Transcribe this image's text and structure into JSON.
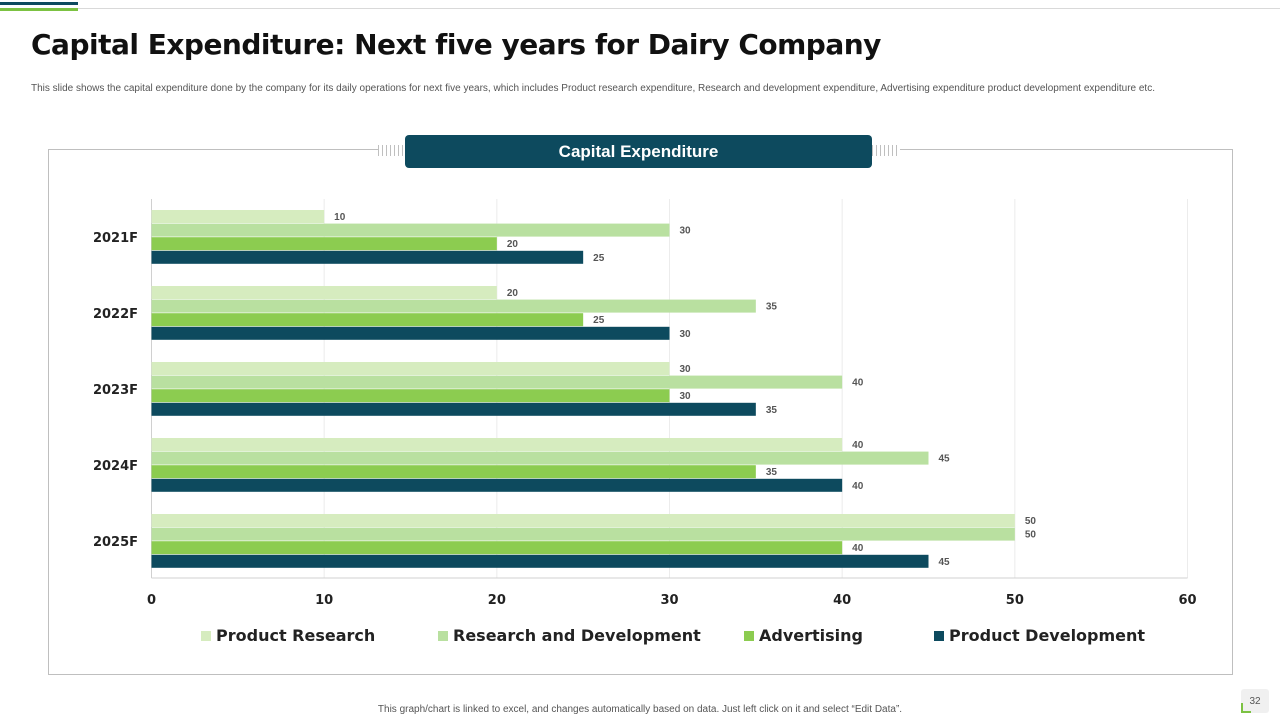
{
  "slide": {
    "title": "Capital Expenditure: Next five years for Dairy Company",
    "subtitle": "This slide shows the capital expenditure done by the company for its daily operations for next five years, which includes Product research expenditure, Research and development expenditure, Advertising expenditure product development expenditure etc.",
    "footer_note": "This graph/chart is linked to excel, and changes automatically based on data. Just left click on it and select “Edit Data”.",
    "page_number": "32"
  },
  "colors": {
    "brand_dark": "#0d4a5e",
    "brand_green": "#7cc242"
  },
  "chart_data": {
    "type": "bar",
    "orientation": "horizontal",
    "title": "Capital Expenditure",
    "categories": [
      "2021F",
      "2022F",
      "2023F",
      "2024F",
      "2025F"
    ],
    "series": [
      {
        "name": "Product Research",
        "color": "#d6ecbf",
        "values": [
          10,
          20,
          30,
          40,
          50
        ]
      },
      {
        "name": "Research and Development",
        "color": "#b9e0a0",
        "values": [
          30,
          35,
          40,
          45,
          50
        ]
      },
      {
        "name": "Advertising",
        "color": "#8ccc50",
        "values": [
          20,
          25,
          30,
          35,
          40
        ]
      },
      {
        "name": "Product Development",
        "color": "#0d4a5e",
        "values": [
          25,
          30,
          35,
          40,
          45
        ]
      }
    ],
    "xlim": [
      0,
      60
    ],
    "xticks": [
      "0",
      "10",
      "20",
      "30",
      "40",
      "50",
      "60"
    ],
    "grid": true,
    "legend": "bottom"
  }
}
